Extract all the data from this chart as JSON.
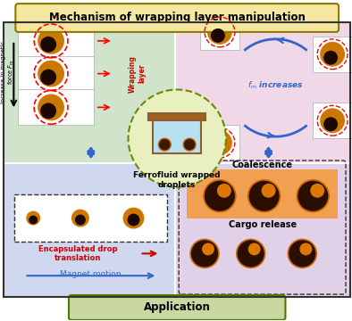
{
  "title": "Mechanism of wrapping layer manipulation",
  "title_bg": "#f5e6a0",
  "title_border": "#8b7a00",
  "app_label": "Application",
  "app_bg": "#c8d8a0",
  "app_border": "#4a7a00",
  "center_label": "Ferrofluid wrapped\ndroplets",
  "center_bg": "#e8f0c0",
  "top_left_bg": "#d0e4cc",
  "top_right_bg": "#f0d8e8",
  "bot_left_bg": "#d0d8f0",
  "bot_right_bg": "#e0d0e8",
  "wrapping_label": "Wrapping\nlayer",
  "encap_label": "Encapsulated drop\ntranslation",
  "magnet_label": "Magnet motion",
  "fm_label": "$f_m$ increases",
  "coalescence_label": "Coalescence",
  "cargo_label": "Cargo release",
  "encap_color": "#cc0000",
  "magnet_color": "#3366cc",
  "fm_color": "#3366cc",
  "wrapping_color": "#cc0000",
  "figure_bg": "#ffffff",
  "border_color": "#333333",
  "dashed_border": "#333333"
}
